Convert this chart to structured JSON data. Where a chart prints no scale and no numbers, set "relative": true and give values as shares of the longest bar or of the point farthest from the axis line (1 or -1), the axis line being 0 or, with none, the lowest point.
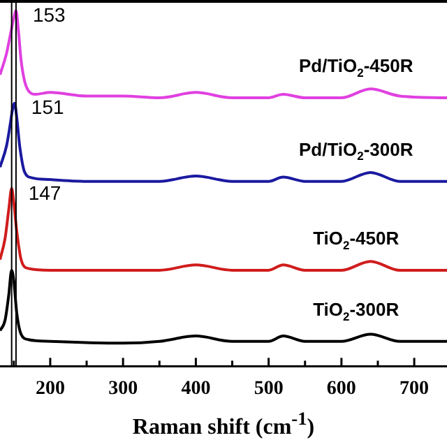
{
  "chart_data": {
    "type": "line",
    "relative": true,
    "xlabel": "Raman shift (cm$^{-1}$)",
    "xlim": [
      131,
      745
    ],
    "xticks": [
      {
        "value": 150,
        "label": null
      },
      200,
      {
        "value": 250,
        "label": null
      },
      300,
      {
        "value": 350,
        "label": null
      },
      400,
      {
        "value": 450,
        "label": null
      },
      500,
      {
        "value": 550,
        "label": null
      },
      600,
      {
        "value": 650,
        "label": null
      },
      700
    ],
    "legend": false,
    "grid": false,
    "marker": "none",
    "line_style": "solid",
    "series": [
      {
        "name": "Pd/TiO$_{2}$-450R",
        "color": "#e040e0",
        "x": [
          131,
          140,
          145,
          150,
          153,
          156,
          160,
          165,
          170,
          180,
          200,
          250,
          300,
          350,
          400,
          450,
          500,
          520,
          550,
          600,
          640,
          680,
          745
        ],
        "values": [
          0.82,
          0.88,
          0.93,
          0.98,
          1.0,
          0.95,
          0.86,
          0.8,
          0.775,
          0.765,
          0.77,
          0.76,
          0.76,
          0.755,
          0.77,
          0.755,
          0.755,
          0.765,
          0.755,
          0.755,
          0.78,
          0.76,
          0.755
        ]
      },
      {
        "name": "Pd/TiO$_{2}$-300R",
        "color": "#1a1aa0",
        "x": [
          131,
          140,
          145,
          148,
          151,
          154,
          158,
          165,
          175,
          200,
          250,
          300,
          350,
          400,
          450,
          500,
          520,
          550,
          600,
          640,
          680,
          745
        ],
        "values": [
          0.56,
          0.62,
          0.68,
          0.72,
          0.74,
          0.7,
          0.62,
          0.545,
          0.53,
          0.525,
          0.52,
          0.52,
          0.52,
          0.535,
          0.52,
          0.52,
          0.532,
          0.52,
          0.52,
          0.545,
          0.52,
          0.52
        ]
      },
      {
        "name": "TiO$_{2}$-450R",
        "color": "#d01c1c",
        "x": [
          131,
          138,
          143,
          147,
          150,
          154,
          160,
          170,
          200,
          300,
          350,
          400,
          450,
          500,
          520,
          550,
          600,
          640,
          680,
          745
        ],
        "values": [
          0.3,
          0.36,
          0.44,
          0.5,
          0.46,
          0.38,
          0.3,
          0.275,
          0.27,
          0.27,
          0.27,
          0.285,
          0.27,
          0.27,
          0.285,
          0.27,
          0.27,
          0.295,
          0.27,
          0.27
        ]
      },
      {
        "name": "TiO$_{2}$-300R",
        "color": "#000000",
        "x": [
          131,
          138,
          143,
          147,
          150,
          154,
          160,
          170,
          200,
          300,
          350,
          400,
          450,
          500,
          520,
          550,
          600,
          640,
          680,
          745
        ],
        "values": [
          0.1,
          0.13,
          0.2,
          0.27,
          0.24,
          0.15,
          0.09,
          0.075,
          0.07,
          0.065,
          0.07,
          0.085,
          0.07,
          0.07,
          0.085,
          0.07,
          0.07,
          0.09,
          0.07,
          0.07
        ]
      }
    ],
    "annotations": [
      {
        "text": "153",
        "x": 153,
        "y": 1.0
      },
      {
        "text": "151",
        "x": 151,
        "y": 0.74
      },
      {
        "text": "147",
        "x": 147,
        "y": 0.5
      }
    ],
    "ref_lines": [
      {
        "axis": "x",
        "value": 153,
        "color": "#000000"
      },
      {
        "axis": "x",
        "value": 147,
        "color": "#000000"
      }
    ]
  }
}
